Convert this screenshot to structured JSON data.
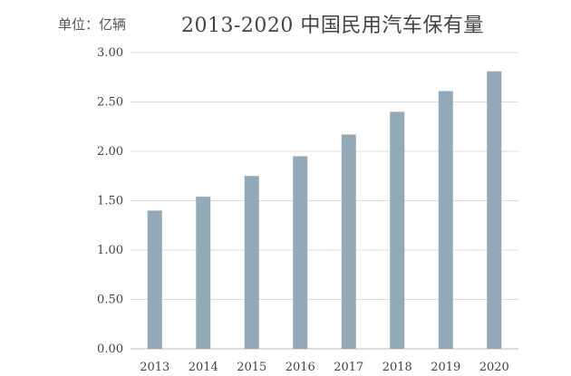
{
  "unit_label": "单位：亿辆",
  "chart_data": {
    "type": "bar",
    "title": "2013-2020 中国民用汽车保有量",
    "xlabel": "",
    "ylabel": "",
    "categories": [
      "2013",
      "2014",
      "2015",
      "2016",
      "2017",
      "2018",
      "2019",
      "2020"
    ],
    "values": [
      1.4,
      1.54,
      1.75,
      1.95,
      2.17,
      2.4,
      2.61,
      2.81
    ],
    "ylim": [
      0,
      3.0
    ],
    "yticks": [
      "0.00",
      "0.50",
      "1.00",
      "1.50",
      "2.00",
      "2.50",
      "3.00"
    ],
    "grid": true,
    "bar_color": "#94a9b8",
    "grid_color": "#dddddd"
  }
}
